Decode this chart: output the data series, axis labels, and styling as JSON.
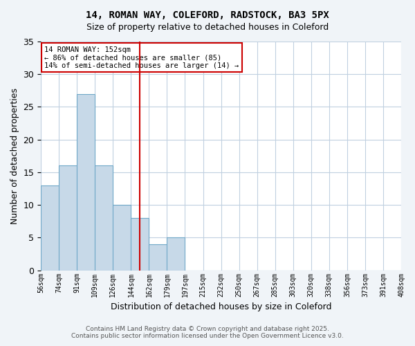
{
  "title_line1": "14, ROMAN WAY, COLEFORD, RADSTOCK, BA3 5PX",
  "title_line2": "Size of property relative to detached houses in Coleford",
  "xlabel": "Distribution of detached houses by size in Coleford",
  "ylabel": "Number of detached properties",
  "bin_labels": [
    "56sqm",
    "74sqm",
    "91sqm",
    "109sqm",
    "126sqm",
    "144sqm",
    "162sqm",
    "179sqm",
    "197sqm",
    "215sqm",
    "232sqm",
    "250sqm",
    "267sqm",
    "285sqm",
    "303sqm",
    "320sqm",
    "338sqm",
    "356sqm",
    "373sqm",
    "391sqm",
    "408sqm"
  ],
  "bar_heights": [
    13,
    16,
    27,
    16,
    10,
    8,
    4,
    5,
    0,
    0,
    0,
    0,
    0,
    0,
    0,
    0,
    0,
    0,
    0,
    0
  ],
  "bar_color": "#c7d9e8",
  "bar_edge_color": "#6fa8c8",
  "vline_x": 5.5,
  "vline_color": "#cc0000",
  "ylim": [
    0,
    35
  ],
  "yticks": [
    0,
    5,
    10,
    15,
    20,
    25,
    30,
    35
  ],
  "annotation_text": "14 ROMAN WAY: 152sqm\n← 86% of detached houses are smaller (85)\n14% of semi-detached houses are larger (14) →",
  "annotation_box_color": "#ffffff",
  "annotation_box_edge": "#cc0000",
  "footer_line1": "Contains HM Land Registry data © Crown copyright and database right 2025.",
  "footer_line2": "Contains public sector information licensed under the Open Government Licence v3.0.",
  "background_color": "#f0f4f8",
  "plot_background": "#ffffff",
  "grid_color": "#c0d0e0"
}
